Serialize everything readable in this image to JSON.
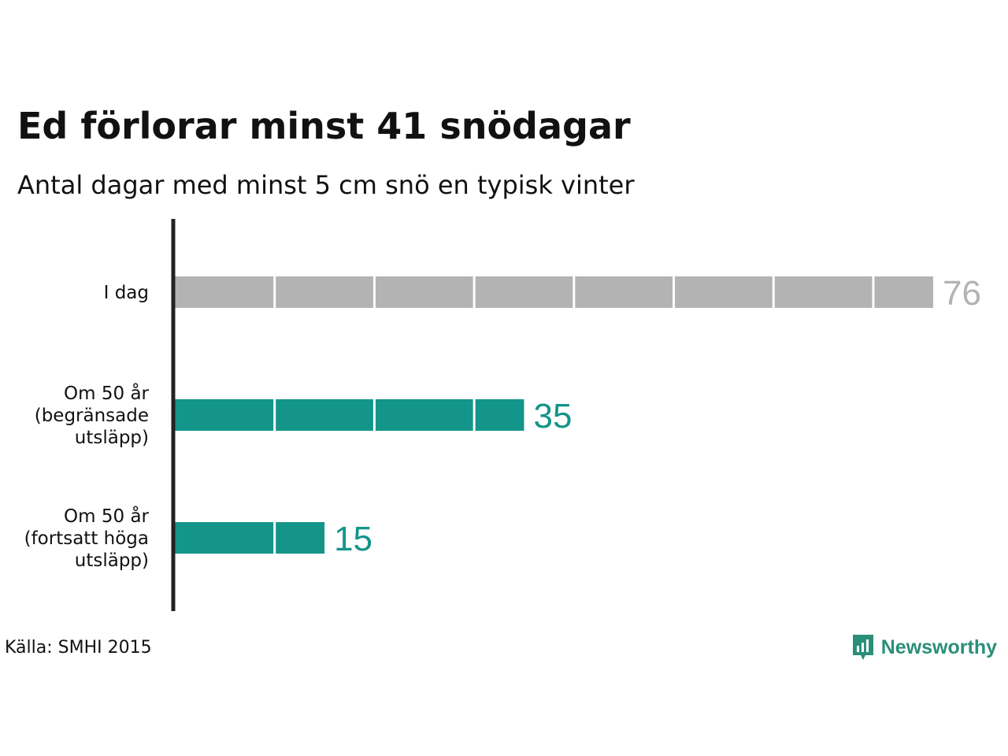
{
  "header": {
    "title": "Ed förlorar minst 41 snödagar",
    "subtitle": "Antal dagar med minst 5 cm snö en typisk vinter"
  },
  "chart_data": {
    "type": "bar",
    "orientation": "horizontal",
    "title": "Ed förlorar minst 41 snödagar",
    "subtitle": "Antal dagar med minst 5 cm snö en typisk vinter",
    "categories": [
      [
        "I dag"
      ],
      [
        "Om 50 år",
        "(begränsade",
        "utsläpp)"
      ],
      [
        "Om 50 år",
        "(fortsatt höga",
        "utsläpp)"
      ]
    ],
    "values": [
      76,
      35,
      15
    ],
    "value_labels": [
      "76",
      "35",
      "15"
    ],
    "colors": [
      "#b3b3b3",
      "#13958a",
      "#13958a"
    ],
    "segment_size": 10,
    "xlim": [
      0,
      76
    ],
    "xlabel": "",
    "ylabel": "",
    "grid": false,
    "legend": "none"
  },
  "footer": {
    "source": "Källa: SMHI 2015",
    "brand": "Newsworthy",
    "brand_color": "#2a8f79"
  }
}
